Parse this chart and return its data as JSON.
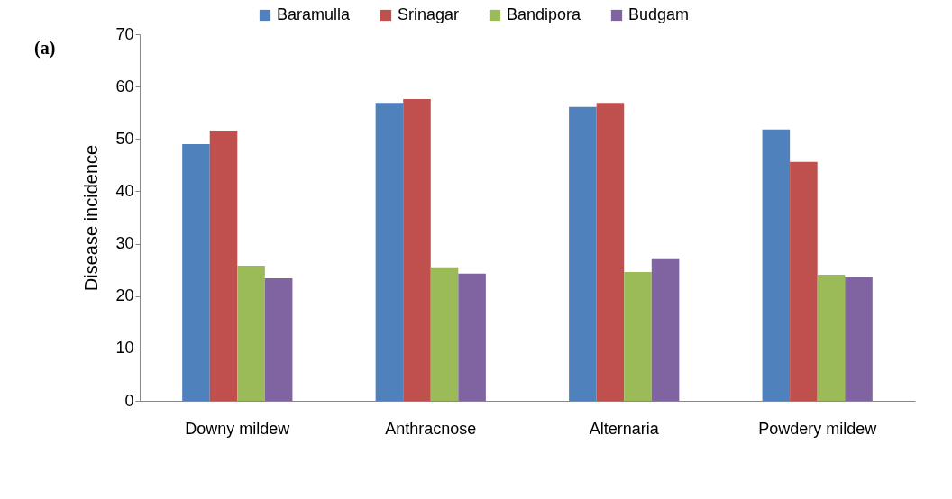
{
  "chart_data": {
    "type": "bar",
    "ylabel": "Disease incidence",
    "annotations": [
      "(a)"
    ],
    "categories": [
      "Downy mildew",
      "Anthracnose",
      "Alternaria",
      "Powdery mildew"
    ],
    "series": [
      {
        "name": "Baramulla",
        "color": "#4f81bd",
        "values": [
          49.0,
          56.9,
          56.1,
          51.8
        ]
      },
      {
        "name": "Srinagar",
        "color": "#c0504d",
        "values": [
          51.6,
          57.6,
          56.9,
          45.6
        ]
      },
      {
        "name": "Bandipora",
        "color": "#9bbb59",
        "values": [
          25.8,
          25.5,
          24.6,
          24.1
        ]
      },
      {
        "name": "Budgam",
        "color": "#8064a2",
        "values": [
          23.4,
          24.3,
          27.2,
          23.6
        ]
      }
    ],
    "ylim": [
      0,
      70
    ],
    "yticks": [
      0,
      10,
      20,
      30,
      40,
      50,
      60,
      70
    ],
    "grid": false,
    "legend": "top"
  }
}
